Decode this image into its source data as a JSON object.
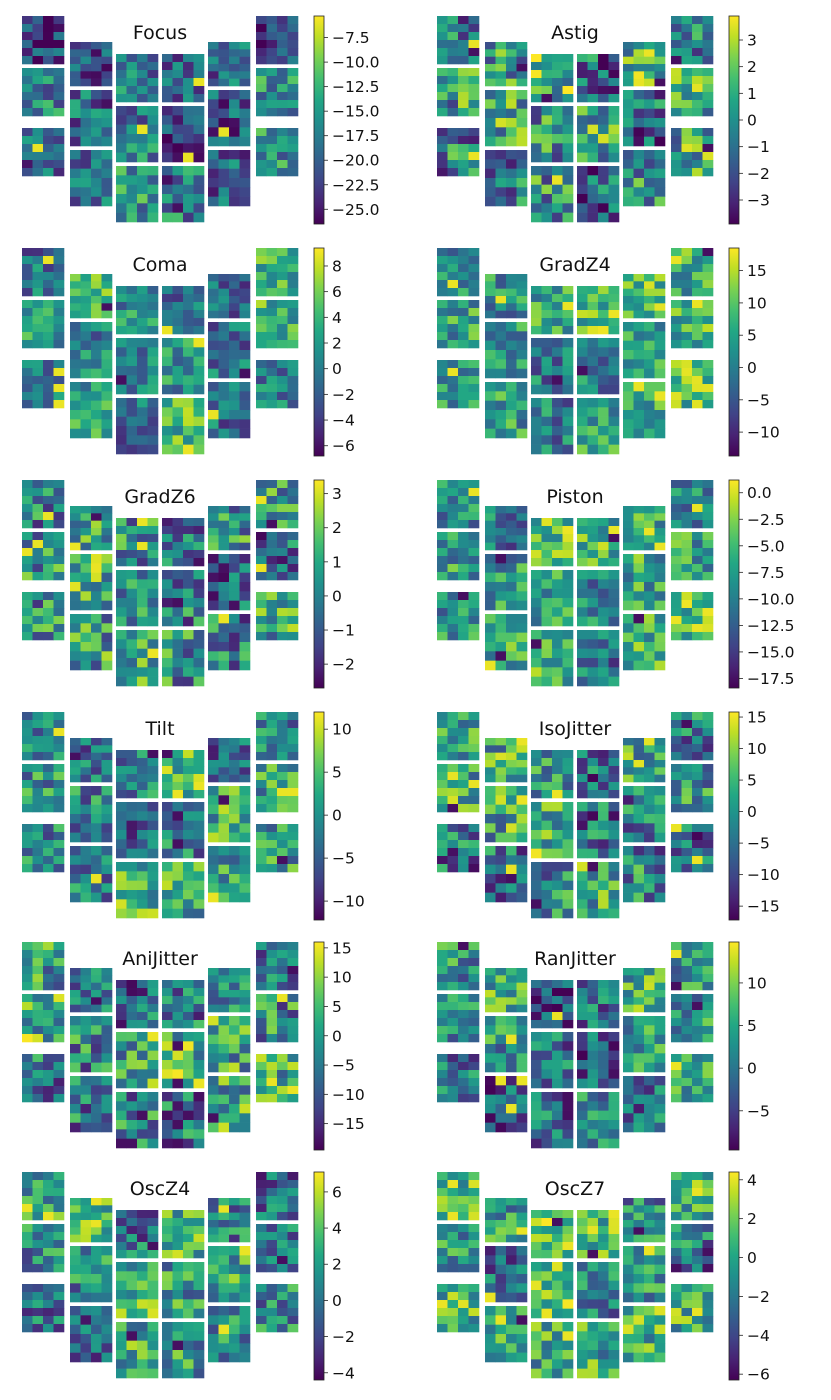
{
  "chart_data": [
    {
      "type": "heatmap",
      "title": "Focus",
      "colormap": "viridis",
      "ticks": [
        "−7.5",
        "−10.0",
        "−12.5",
        "−15.0",
        "−17.5",
        "−20.0",
        "−22.5",
        "−25.0"
      ],
      "tick_values": [
        -7.5,
        -10.0,
        -12.5,
        -15.0,
        -17.5,
        -20.0,
        -22.5,
        -25.0
      ],
      "range": [
        -26.5,
        -5.3
      ],
      "bias": -0.15,
      "spread": 0.55
    },
    {
      "type": "heatmap",
      "title": "Astig",
      "colormap": "viridis",
      "ticks": [
        "3",
        "2",
        "1",
        "0",
        "−1",
        "−2",
        "−3"
      ],
      "tick_values": [
        3,
        2,
        1,
        0,
        -1,
        -2,
        -3
      ],
      "range": [
        -3.9,
        3.9
      ],
      "bias": 0.0,
      "spread": 0.75
    },
    {
      "type": "heatmap",
      "title": "Coma",
      "colormap": "viridis",
      "ticks": [
        "8",
        "6",
        "4",
        "2",
        "0",
        "−2",
        "−4",
        "−6"
      ],
      "tick_values": [
        8,
        6,
        4,
        2,
        0,
        -2,
        -4,
        -6
      ],
      "range": [
        -6.8,
        9.4
      ],
      "bias": 0.0,
      "spread": 0.5
    },
    {
      "type": "heatmap",
      "title": "GradZ4",
      "colormap": "viridis",
      "ticks": [
        "15",
        "10",
        "5",
        "0",
        "−5",
        "−10"
      ],
      "tick_values": [
        15,
        10,
        5,
        0,
        -5,
        -10
      ],
      "range": [
        -13.7,
        18.5
      ],
      "bias": 0.05,
      "spread": 0.55
    },
    {
      "type": "heatmap",
      "title": "GradZ6",
      "colormap": "viridis",
      "ticks": [
        "3",
        "2",
        "1",
        "0",
        "−1",
        "−2"
      ],
      "tick_values": [
        3,
        2,
        1,
        0,
        -1,
        -2
      ],
      "range": [
        -2.7,
        3.4
      ],
      "bias": 0.0,
      "spread": 0.7
    },
    {
      "type": "heatmap",
      "title": "Piston",
      "colormap": "viridis",
      "ticks": [
        "0.0",
        "−2.5",
        "−5.0",
        "−7.5",
        "−10.0",
        "−12.5",
        "−15.0",
        "−17.5"
      ],
      "tick_values": [
        0.0,
        -2.5,
        -5.0,
        -7.5,
        -10.0,
        -12.5,
        -15.0,
        -17.5
      ],
      "range": [
        -18.4,
        1.2
      ],
      "bias": 0.05,
      "spread": 0.55
    },
    {
      "type": "heatmap",
      "title": "Tilt",
      "colormap": "viridis",
      "ticks": [
        "10",
        "5",
        "0",
        "−5",
        "−10"
      ],
      "tick_values": [
        10,
        5,
        0,
        -5,
        -10
      ],
      "range": [
        -12.2,
        12.0
      ],
      "bias": 0.0,
      "spread": 0.6
    },
    {
      "type": "heatmap",
      "title": "IsoJitter",
      "colormap": "viridis",
      "ticks": [
        "15",
        "10",
        "5",
        "0",
        "−5",
        "−10",
        "−15"
      ],
      "tick_values": [
        15,
        10,
        5,
        0,
        -5,
        -10,
        -15
      ],
      "range": [
        -17.2,
        15.8
      ],
      "bias": 0.0,
      "spread": 0.7
    },
    {
      "type": "heatmap",
      "title": "AniJitter",
      "colormap": "viridis",
      "ticks": [
        "15",
        "10",
        "5",
        "0",
        "−5",
        "−10",
        "−15"
      ],
      "tick_values": [
        15,
        10,
        5,
        0,
        -5,
        -10,
        -15
      ],
      "range": [
        -19.5,
        16.0
      ],
      "bias": 0.0,
      "spread": 0.7
    },
    {
      "type": "heatmap",
      "title": "RanJitter",
      "colormap": "viridis",
      "ticks": [
        "10",
        "5",
        "0",
        "−5"
      ],
      "tick_values": [
        10,
        5,
        0,
        -5
      ],
      "range": [
        -9.6,
        14.8
      ],
      "bias": -0.05,
      "spread": 0.6
    },
    {
      "type": "heatmap",
      "title": "OscZ4",
      "colormap": "viridis",
      "ticks": [
        "6",
        "4",
        "2",
        "0",
        "−2",
        "−4"
      ],
      "tick_values": [
        6,
        4,
        2,
        0,
        -2,
        -4
      ],
      "range": [
        -4.4,
        7.1
      ],
      "bias": 0.0,
      "spread": 0.6
    },
    {
      "type": "heatmap",
      "title": "OscZ7",
      "colormap": "viridis",
      "ticks": [
        "4",
        "2",
        "0",
        "−2",
        "−4",
        "−6"
      ],
      "tick_values": [
        4,
        2,
        0,
        -2,
        -4,
        -6
      ],
      "range": [
        -6.3,
        4.4
      ],
      "bias": 0.05,
      "spread": 0.6
    }
  ]
}
